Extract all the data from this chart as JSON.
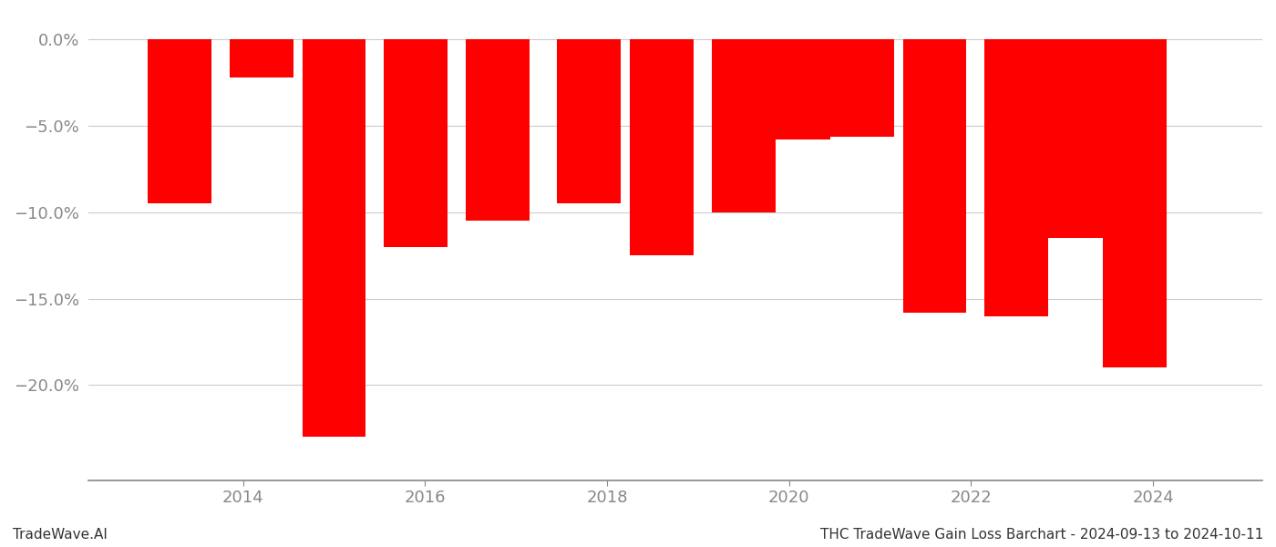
{
  "years": [
    2013.3,
    2014.2,
    2015.0,
    2015.9,
    2016.8,
    2017.8,
    2018.6,
    2019.5,
    2020.1,
    2020.8,
    2021.6,
    2022.5,
    2023.1,
    2023.8
  ],
  "values": [
    -9.5,
    -2.2,
    -23.0,
    -12.0,
    -10.5,
    -9.5,
    -12.5,
    -10.0,
    -5.8,
    -5.6,
    -15.8,
    -16.0,
    -11.5,
    -19.0
  ],
  "bar_color": "#ff0000",
  "bar_width": 0.7,
  "title": "THC TradeWave Gain Loss Barchart - 2024-09-13 to 2024-10-11",
  "watermark": "TradeWave.AI",
  "xlim": [
    2012.3,
    2025.2
  ],
  "ylim": [
    -25.5,
    1.5
  ],
  "yticks": [
    0.0,
    -5.0,
    -10.0,
    -15.0,
    -20.0
  ],
  "ytick_labels": [
    "0.0%",
    "−5.0%",
    "−10.0%",
    "−15.0%",
    "−20.0%"
  ],
  "xticks": [
    2014,
    2016,
    2018,
    2020,
    2022,
    2024
  ],
  "background_color": "#ffffff",
  "grid_color": "#cccccc",
  "tick_color": "#888888",
  "title_fontsize": 11,
  "watermark_fontsize": 11
}
